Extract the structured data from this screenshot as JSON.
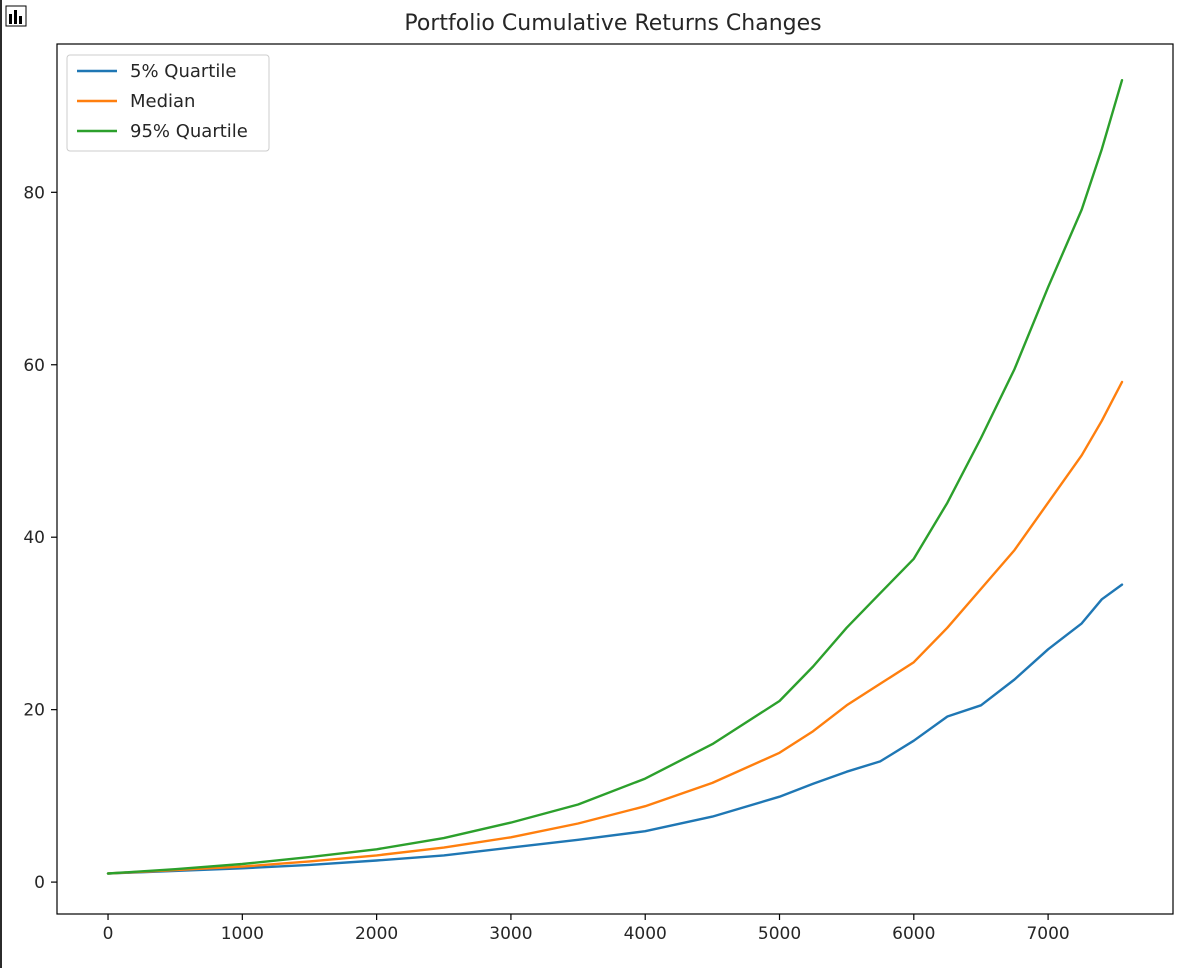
{
  "toolbar": {
    "icon": "bar-chart-icon"
  },
  "chart_data": {
    "type": "line",
    "title": "Portfolio Cumulative Returns Changes",
    "xlabel": "",
    "ylabel": "",
    "xlim": [
      -380,
      7930
    ],
    "ylim": [
      -3.7,
      97.2
    ],
    "xticks": [
      0,
      1000,
      2000,
      3000,
      4000,
      5000,
      6000,
      7000
    ],
    "xtick_labels": [
      "0",
      "1000",
      "2000",
      "3000",
      "4000",
      "5000",
      "6000",
      "7000"
    ],
    "yticks": [
      0,
      20,
      40,
      60,
      80
    ],
    "ytick_labels": [
      "0",
      "20",
      "40",
      "60",
      "80"
    ],
    "grid": false,
    "legend_position": "top-left",
    "series": [
      {
        "name": "5% Quartile",
        "color": "#1f77b4",
        "x": [
          0,
          500,
          1000,
          1500,
          2000,
          2500,
          3000,
          3500,
          4000,
          4500,
          5000,
          5250,
          5500,
          5750,
          6000,
          6250,
          6500,
          6750,
          7000,
          7250,
          7400,
          7550
        ],
        "y": [
          1.0,
          1.3,
          1.6,
          2.0,
          2.5,
          3.1,
          4.0,
          4.9,
          5.9,
          7.6,
          9.9,
          11.4,
          12.8,
          14.0,
          16.4,
          19.2,
          20.5,
          23.5,
          27.0,
          30.0,
          32.8,
          34.5
        ]
      },
      {
        "name": "Median",
        "color": "#ff7f0e",
        "x": [
          0,
          500,
          1000,
          1500,
          2000,
          2500,
          3000,
          3500,
          4000,
          4500,
          5000,
          5250,
          5500,
          5750,
          6000,
          6250,
          6500,
          6750,
          7000,
          7250,
          7400,
          7550
        ],
        "y": [
          1.0,
          1.4,
          1.8,
          2.4,
          3.1,
          4.0,
          5.2,
          6.8,
          8.8,
          11.5,
          15.0,
          17.5,
          20.5,
          23.0,
          25.5,
          29.5,
          34.0,
          38.5,
          44.0,
          49.5,
          53.5,
          58.0
        ]
      },
      {
        "name": "95% Quartile",
        "color": "#2ca02c",
        "x": [
          0,
          500,
          1000,
          1500,
          2000,
          2500,
          3000,
          3500,
          4000,
          4500,
          5000,
          5250,
          5500,
          5750,
          6000,
          6250,
          6500,
          6750,
          7000,
          7250,
          7400,
          7550
        ],
        "y": [
          1.0,
          1.5,
          2.1,
          2.9,
          3.8,
          5.1,
          6.9,
          9.0,
          12.0,
          16.0,
          21.0,
          25.0,
          29.5,
          33.5,
          37.5,
          44.0,
          51.5,
          59.5,
          69.0,
          78.0,
          85.0,
          93.0
        ]
      }
    ]
  }
}
